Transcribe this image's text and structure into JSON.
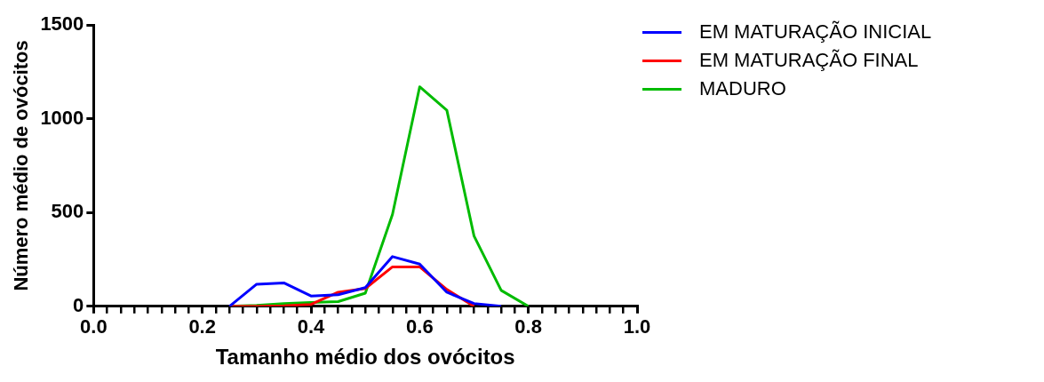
{
  "chart_data": {
    "type": "line",
    "xlabel": "Tamanho médio dos ovócitos",
    "ylabel": "Número médio de ovócitos",
    "xlim": [
      0,
      1
    ],
    "ylim": [
      0,
      1500
    ],
    "xticks": [
      {
        "value": 0,
        "label": "0.0"
      },
      {
        "value": 0.025,
        "label": null
      },
      {
        "value": 0.05,
        "label": null
      },
      {
        "value": 0.075,
        "label": null
      },
      {
        "value": 0.1,
        "label": null
      },
      {
        "value": 0.125,
        "label": null
      },
      {
        "value": 0.15,
        "label": null
      },
      {
        "value": 0.175,
        "label": null
      },
      {
        "value": 0.2,
        "label": "0.2"
      },
      {
        "value": 0.225,
        "label": null
      },
      {
        "value": 0.25,
        "label": null
      },
      {
        "value": 0.275,
        "label": null
      },
      {
        "value": 0.3,
        "label": null
      },
      {
        "value": 0.325,
        "label": null
      },
      {
        "value": 0.35,
        "label": null
      },
      {
        "value": 0.375,
        "label": null
      },
      {
        "value": 0.4,
        "label": "0.4"
      },
      {
        "value": 0.425,
        "label": null
      },
      {
        "value": 0.45,
        "label": null
      },
      {
        "value": 0.475,
        "label": null
      },
      {
        "value": 0.5,
        "label": null
      },
      {
        "value": 0.525,
        "label": null
      },
      {
        "value": 0.55,
        "label": null
      },
      {
        "value": 0.575,
        "label": null
      },
      {
        "value": 0.6,
        "label": "0.6"
      },
      {
        "value": 0.625,
        "label": null
      },
      {
        "value": 0.65,
        "label": null
      },
      {
        "value": 0.675,
        "label": null
      },
      {
        "value": 0.7,
        "label": null
      },
      {
        "value": 0.725,
        "label": null
      },
      {
        "value": 0.75,
        "label": null
      },
      {
        "value": 0.775,
        "label": null
      },
      {
        "value": 0.8,
        "label": "0.8"
      },
      {
        "value": 0.825,
        "label": null
      },
      {
        "value": 0.85,
        "label": null
      },
      {
        "value": 0.875,
        "label": null
      },
      {
        "value": 0.9,
        "label": null
      },
      {
        "value": 0.925,
        "label": null
      },
      {
        "value": 0.95,
        "label": null
      },
      {
        "value": 0.975,
        "label": null
      },
      {
        "value": 1,
        "label": "1.0"
      }
    ],
    "yticks": [
      0,
      500,
      1000,
      1500
    ],
    "grid": false,
    "legend": "top right",
    "marker": "none",
    "line_style": "solid",
    "series": [
      {
        "name": "EM MATURAÇÃO INICIAL",
        "color": "#0000ff",
        "x": [
          0.25,
          0.3,
          0.35,
          0.4,
          0.45,
          0.5,
          0.55,
          0.6,
          0.65,
          0.7,
          0.75
        ],
        "values": [
          0,
          118,
          125,
          55,
          62,
          100,
          265,
          225,
          75,
          15,
          0
        ]
      },
      {
        "name": "EM MATURAÇÃO FINAL",
        "color": "#ff0000",
        "x": [
          0.25,
          0.3,
          0.35,
          0.4,
          0.45,
          0.5,
          0.55,
          0.6,
          0.65,
          0.7
        ],
        "values": [
          0,
          0,
          3,
          10,
          75,
          95,
          210,
          210,
          90,
          0
        ]
      },
      {
        "name": "MADURO",
        "color": "#00bb00",
        "x": [
          0.25,
          0.3,
          0.35,
          0.4,
          0.45,
          0.5,
          0.55,
          0.6,
          0.65,
          0.7,
          0.75,
          0.8
        ],
        "values": [
          0,
          5,
          15,
          20,
          25,
          70,
          490,
          1170,
          1045,
          375,
          85,
          0
        ]
      }
    ]
  }
}
